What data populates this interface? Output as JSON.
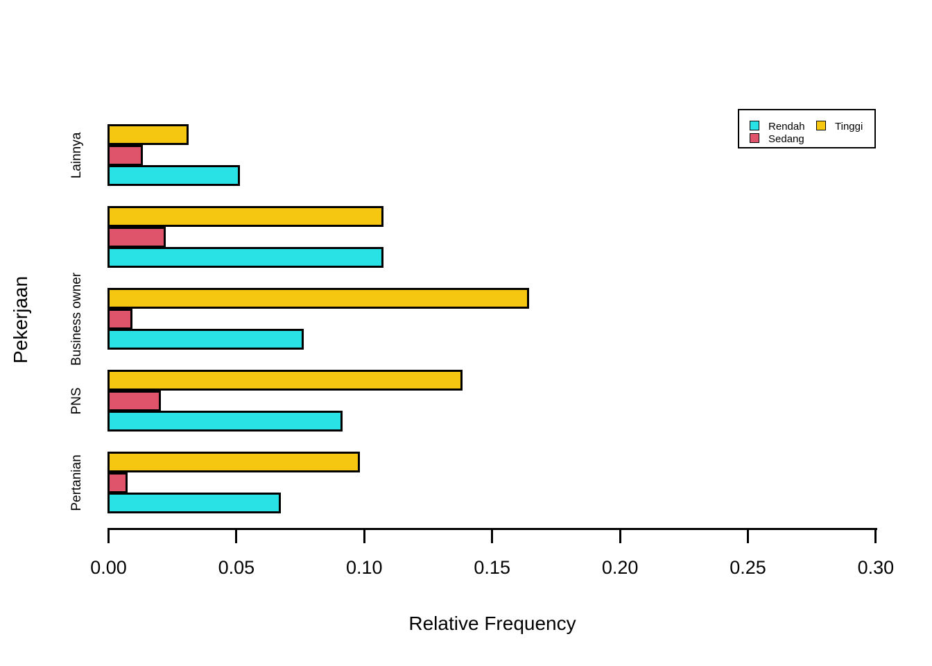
{
  "chart_data": {
    "type": "bar",
    "orientation": "horizontal",
    "xlabel": "Relative Frequency",
    "ylabel": "Pekerjaan",
    "xlim": [
      0,
      0.3
    ],
    "x_ticks": [
      "0.00",
      "0.05",
      "0.10",
      "0.15",
      "0.20",
      "0.25",
      "0.30"
    ],
    "grid": false,
    "background": "#FFFFFF",
    "bar_border_color": "#000000",
    "categories_top_to_bottom": [
      "Lainnya",
      "",
      "Business owner",
      "PNS",
      "Pertanian"
    ],
    "series": [
      {
        "name": "Rendah",
        "color": "#28E2E5",
        "values_top_to_bottom": [
          0.051,
          0.107,
          0.076,
          0.091,
          0.067
        ]
      },
      {
        "name": "Sedang",
        "color": "#DF536B",
        "values_top_to_bottom": [
          0.013,
          0.022,
          0.009,
          0.02,
          0.007
        ]
      },
      {
        "name": "Tinggi",
        "color": "#F5C710",
        "values_top_to_bottom": [
          0.031,
          0.107,
          0.164,
          0.138,
          0.098
        ]
      }
    ],
    "bar_order_within_group_top_to_bottom": [
      "Tinggi",
      "Sedang",
      "Rendah"
    ],
    "legend": {
      "position": "top-right",
      "columns": [
        [
          "Rendah",
          "Sedang"
        ],
        [
          "Tinggi"
        ]
      ]
    }
  }
}
